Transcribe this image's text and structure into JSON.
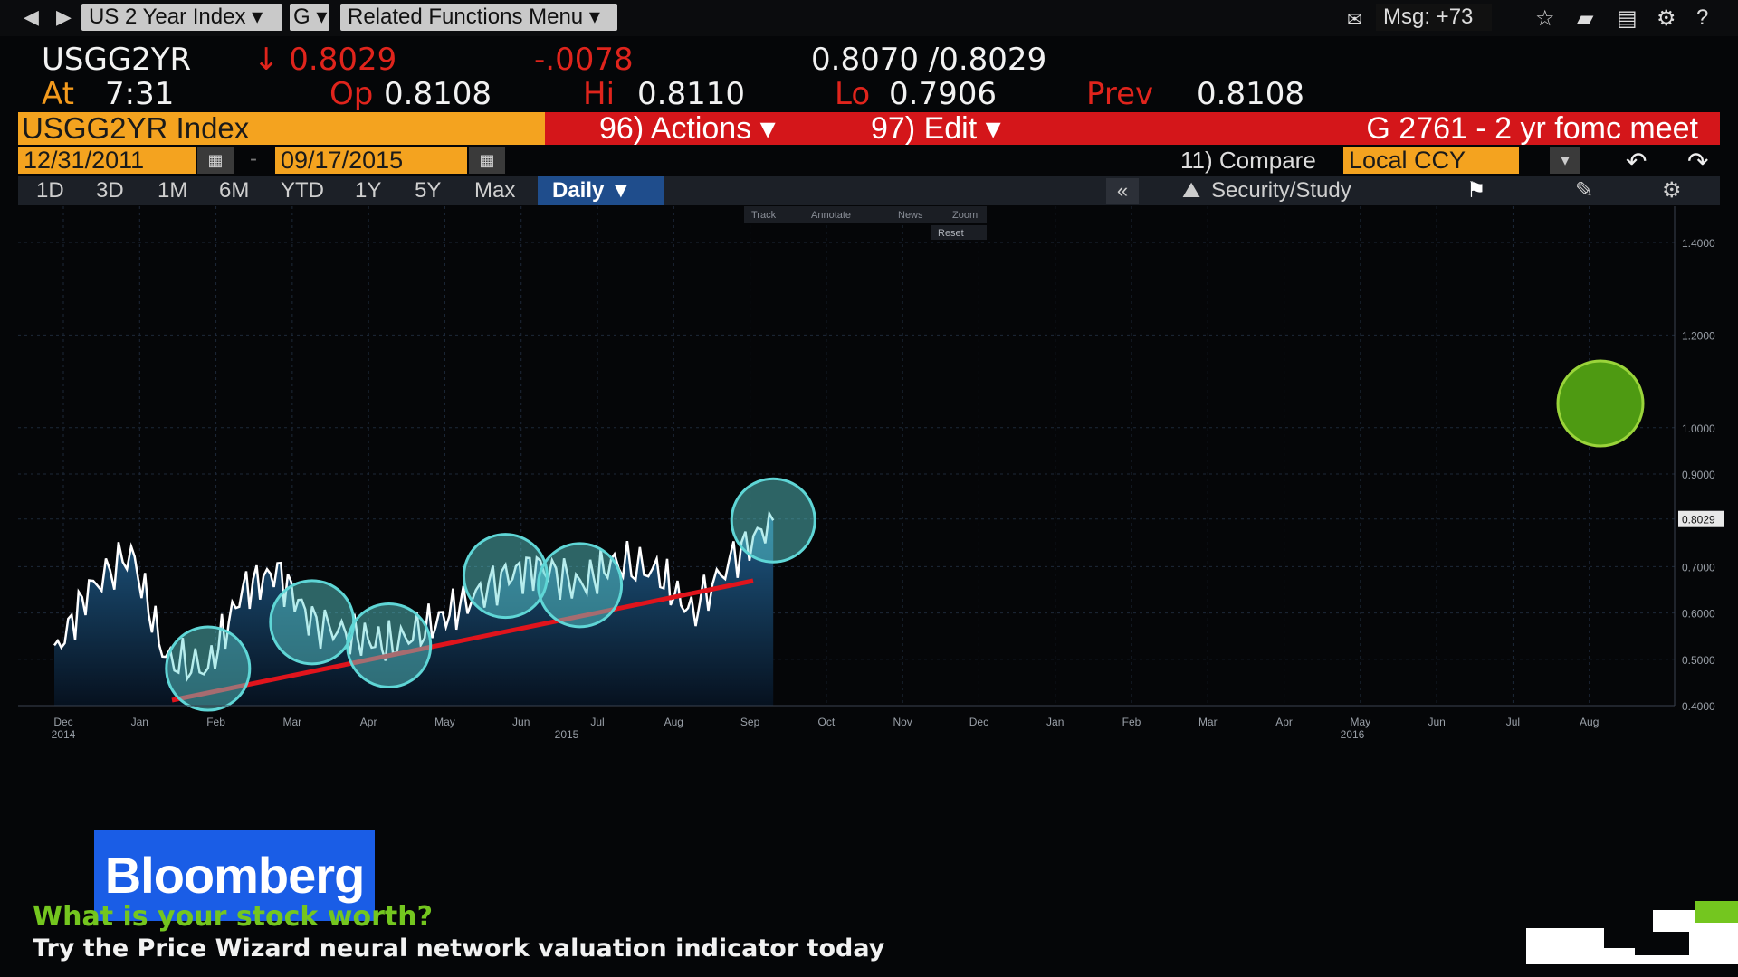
{
  "toolbar": {
    "back": "◀",
    "forward": "▶",
    "security_menu": "US 2 Year Index ▾",
    "g_menu": "G ▾",
    "related_menu": "Related Functions Menu ▾",
    "msg": "Msg: +73",
    "icons": [
      "mail-icon",
      "star-icon",
      "folder-icon",
      "clipboard-icon",
      "gear-icon",
      "help-icon"
    ]
  },
  "quote": {
    "ticker": "USGG2YR",
    "last": "↓ 0.8029",
    "change": "-.0078",
    "bid_ask": "0.8070 /0.8029",
    "time_label": "At",
    "time": "7:31",
    "open_label": "Op",
    "open": "0.8108",
    "high_label": "Hi",
    "high": "0.8110",
    "low_label": "Lo",
    "low": "0.7906",
    "prev_label": "Prev",
    "prev": "0.8108"
  },
  "titlebar": {
    "index": "USGG2YR Index",
    "actions": "96) Actions ▾",
    "edit": "97) Edit ▾",
    "chart_name": "G 2761 - 2 yr fomc meet"
  },
  "dates": {
    "start": "12/31/2011",
    "dash": "-",
    "end": "09/17/2015",
    "compare": "11) Compare",
    "currency": "Local CCY"
  },
  "periods": [
    "1D",
    "3D",
    "1M",
    "6M",
    "YTD",
    "1Y",
    "5Y",
    "Max"
  ],
  "frequency": "Daily ▼",
  "study_bar": {
    "collapse": "«",
    "security_study": "Security/Study"
  },
  "mini_toolbar": [
    "Track",
    "Annotate",
    "News",
    "Zoom"
  ],
  "reset_label": "Reset",
  "chart_data": {
    "type": "line",
    "y_ticks": [
      "1.4000",
      "1.2000",
      "1.0000",
      "0.9000",
      "0.8029",
      "0.7000",
      "0.6000",
      "0.5000",
      "0.4000"
    ],
    "ylim": [
      0.4,
      1.4
    ],
    "x_month_labels": [
      "Dec",
      "Jan",
      "Feb",
      "Mar",
      "Apr",
      "May",
      "Jun",
      "Jul",
      "Aug",
      "Sep",
      "Oct",
      "Nov",
      "Dec",
      "Jan",
      "Feb",
      "Mar",
      "Apr",
      "May",
      "Jun",
      "Jul",
      "Aug"
    ],
    "x_year_labels": [
      "2014",
      "2015",
      "2016"
    ],
    "last_value": "0.8029",
    "series": [
      {
        "x": [
          "2014-12-01",
          "2014-12-15",
          "2015-01-01",
          "2015-01-15",
          "2015-02-01",
          "2015-02-15",
          "2015-03-01",
          "2015-03-15",
          "2015-04-01",
          "2015-04-15",
          "2015-05-01",
          "2015-05-15",
          "2015-06-01",
          "2015-06-15",
          "2015-07-01",
          "2015-07-15",
          "2015-08-01",
          "2015-08-15",
          "2015-09-01",
          "2015-09-17"
        ],
        "values": [
          0.51,
          0.65,
          0.73,
          0.5,
          0.48,
          0.65,
          0.69,
          0.58,
          0.55,
          0.53,
          0.57,
          0.62,
          0.68,
          0.7,
          0.66,
          0.71,
          0.69,
          0.6,
          0.72,
          0.8
        ]
      }
    ]
  },
  "ticker": {
    "brand": "Bloomberg",
    "headline": "What is your stock worth?",
    "subline": "Try the Price Wizard neural network valuation indicator today"
  },
  "colors": {
    "accent_orange": "#f4a31f",
    "accent_red": "#d4161a",
    "line": "#ffffff",
    "trend": "#e0141c",
    "circle": "#5fd6d6",
    "brand": "#1a5de6"
  }
}
